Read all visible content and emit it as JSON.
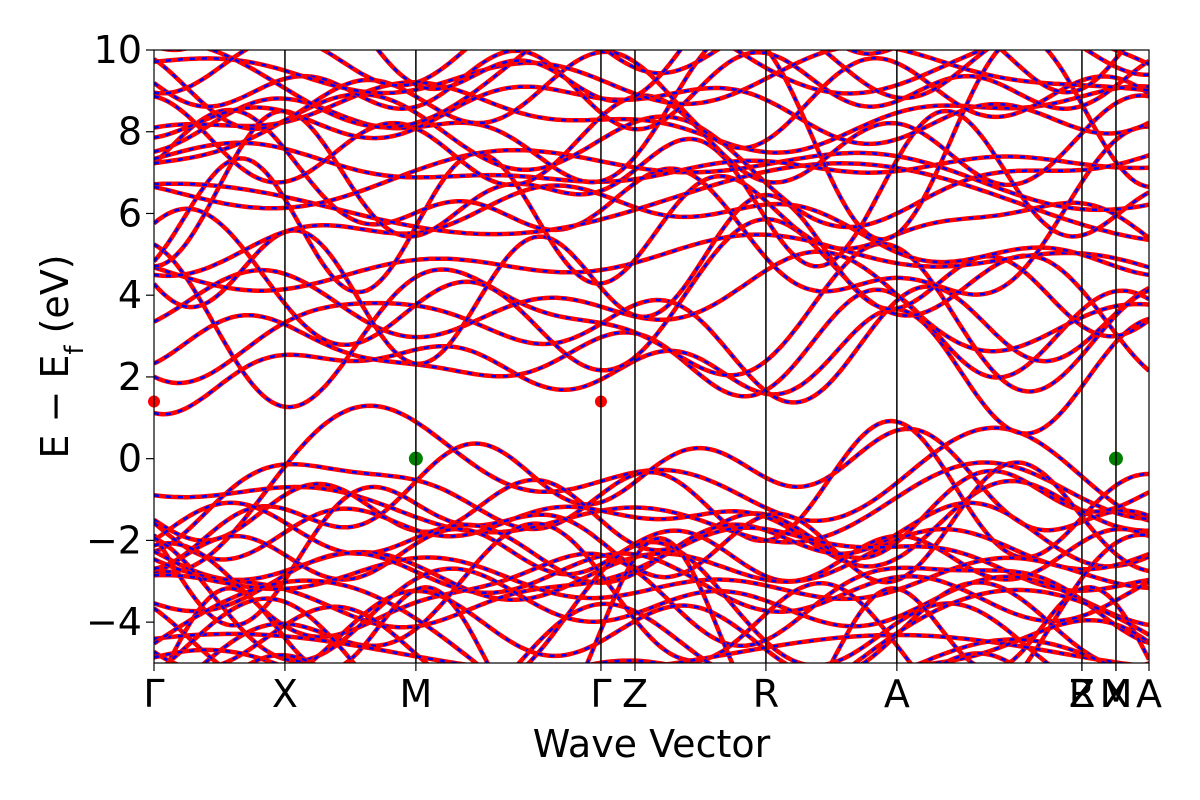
{
  "chart_data": {
    "type": "line",
    "title": "",
    "xlabel": "Wave Vector",
    "ylabel": "E − E_f (eV)",
    "ylim": [
      -5,
      10
    ],
    "yticks": [
      -4,
      -2,
      0,
      2,
      4,
      6,
      8,
      10
    ],
    "ytick_labels": [
      "−4",
      "−2",
      "0",
      "2",
      "4",
      "6",
      "8",
      "10"
    ],
    "x_range": [
      0,
      1
    ],
    "kpoints": [
      {
        "label": "Γ",
        "x": 0.0
      },
      {
        "label": "X",
        "x": 0.1316
      },
      {
        "label": "M",
        "x": 0.2632
      },
      {
        "label": "Γ",
        "x": 0.4492
      },
      {
        "label": "Z",
        "x": 0.4834
      },
      {
        "label": "R",
        "x": 0.615
      },
      {
        "label": "A",
        "x": 0.7466
      },
      {
        "label": "Z",
        "x": 0.9326
      },
      {
        "label": "R",
        "x": 0.9326
      },
      {
        "label": "X",
        "x": 0.9668
      },
      {
        "label": "M",
        "x": 0.9668
      },
      {
        "label": "A",
        "x": 1.0
      }
    ],
    "series_colors": {
      "spin_up": "#ff0000",
      "spin_down": "#0000ff"
    },
    "markers": {
      "vbm": {
        "color": "#008000",
        "points": [
          {
            "x": 0.2632,
            "y": 0.0
          },
          {
            "x": 0.9668,
            "y": 0.0
          }
        ]
      },
      "cbm": {
        "color": "#ff0000",
        "points": [
          {
            "x": 0.0,
            "y": 1.4
          },
          {
            "x": 0.4492,
            "y": 1.4
          }
        ]
      }
    },
    "band_count_valence": 24,
    "band_count_conduction": 26,
    "grid": false
  }
}
